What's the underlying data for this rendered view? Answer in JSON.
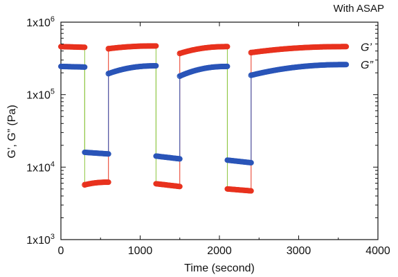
{
  "chart_data": {
    "type": "scatter",
    "title": "With ASAP",
    "xlabel": "Time (second)",
    "ylabel": "G’, G” (Pa)",
    "xlim": [
      0,
      4000
    ],
    "ylim": [
      1000,
      1000000
    ],
    "yscale": "log",
    "x_ticks": [
      0,
      1000,
      2000,
      3000,
      4000
    ],
    "x_tick_labels": [
      "0",
      "1000",
      "2000",
      "3000",
      "4000"
    ],
    "y_ticks": [
      1000,
      10000,
      100000,
      1000000
    ],
    "y_tick_base": "1x10",
    "y_tick_exponents": [
      "3",
      "4",
      "5",
      "6"
    ],
    "grid": false,
    "legend_placement": "right edge, beside series",
    "series": [
      {
        "name": "G’",
        "color": "#e8321e",
        "segments": [
          {
            "x": [
              0,
              300
            ],
            "y": [
              460000,
              450000
            ]
          },
          {
            "x": [
              300,
              600
            ],
            "y": [
              5700,
              6200
            ]
          },
          {
            "x": [
              600,
              1200
            ],
            "y": [
              430000,
              470000
            ]
          },
          {
            "x": [
              1200,
              1500
            ],
            "y": [
              5900,
              5400
            ]
          },
          {
            "x": [
              1500,
              2100
            ],
            "y": [
              370000,
              460000
            ]
          },
          {
            "x": [
              2100,
              2400
            ],
            "y": [
              5000,
              4700
            ]
          },
          {
            "x": [
              2400,
              3600
            ],
            "y": [
              380000,
              460000
            ]
          }
        ]
      },
      {
        "name": "G”",
        "color": "#2a55b8",
        "segments": [
          {
            "x": [
              0,
              300
            ],
            "y": [
              245000,
              240000
            ]
          },
          {
            "x": [
              300,
              600
            ],
            "y": [
              16000,
              15200
            ]
          },
          {
            "x": [
              600,
              1200
            ],
            "y": [
              195000,
              250000
            ]
          },
          {
            "x": [
              1200,
              1500
            ],
            "y": [
              14200,
              13000
            ]
          },
          {
            "x": [
              1500,
              2100
            ],
            "y": [
              180000,
              245000
            ]
          },
          {
            "x": [
              2100,
              2400
            ],
            "y": [
              12500,
              11500
            ]
          },
          {
            "x": [
              2400,
              3600
            ],
            "y": [
              185000,
              260000
            ]
          }
        ]
      }
    ],
    "connector_color": "#8cc63e"
  }
}
